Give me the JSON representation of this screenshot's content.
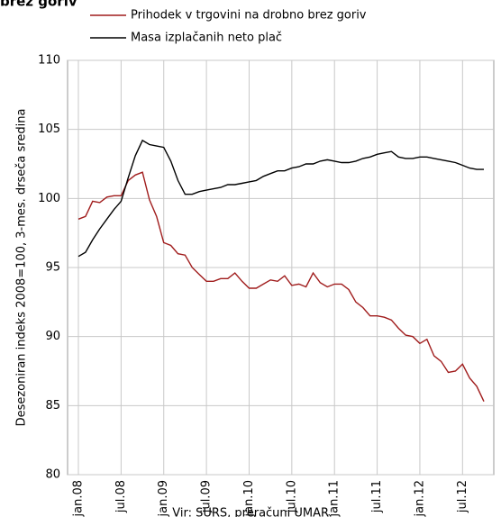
{
  "chart_data": {
    "type": "line",
    "title": "brez goriv",
    "y_label": "Desezoniran indeks 2008=100, 3-mes. drseča sredina",
    "source": "Vir: SURS, preračuni UMAR.",
    "categories": [
      "jan.08",
      null,
      null,
      null,
      null,
      null,
      "jul.08",
      null,
      null,
      null,
      null,
      null,
      "jan.09",
      null,
      null,
      null,
      null,
      null,
      "jul.09",
      null,
      null,
      null,
      null,
      null,
      "jan.10",
      null,
      null,
      null,
      null,
      null,
      "jul.10",
      null,
      null,
      null,
      null,
      null,
      "jan.11",
      null,
      null,
      null,
      null,
      null,
      "jul.11",
      null,
      null,
      null,
      null,
      null,
      "jan.12",
      null,
      null,
      null,
      null,
      null,
      "jul.12",
      null,
      null,
      null
    ],
    "series": [
      {
        "name": "Prihodek v trgovini na drobno brez goriv",
        "color": "#a01c1c",
        "values": [
          98.5,
          98.7,
          99.8,
          99.7,
          100.1,
          100.2,
          100.2,
          101.3,
          101.7,
          101.9,
          99.9,
          98.7,
          96.8,
          96.6,
          96.0,
          95.9,
          95.0,
          94.5,
          94.0,
          94.0,
          94.2,
          94.2,
          94.6,
          94.0,
          93.5,
          93.5,
          93.8,
          94.1,
          94.0,
          94.4,
          93.7,
          93.8,
          93.6,
          94.6,
          93.9,
          93.6,
          93.8,
          93.8,
          93.4,
          92.5,
          92.1,
          91.5,
          91.5,
          91.4,
          91.2,
          90.6,
          90.1,
          90.0,
          89.5,
          89.8,
          88.6,
          88.2,
          87.4,
          87.5,
          88.0,
          87.0,
          86.4,
          85.3
        ]
      },
      {
        "name": "Masa izplačanih neto plač",
        "color": "#000000",
        "values": [
          95.8,
          96.1,
          97.0,
          97.8,
          98.5,
          99.2,
          99.8,
          101.5,
          103.1,
          104.2,
          103.9,
          103.8,
          103.7,
          102.7,
          101.3,
          100.3,
          100.3,
          100.5,
          100.6,
          100.7,
          100.8,
          101.0,
          101.0,
          101.1,
          101.2,
          101.3,
          101.6,
          101.8,
          102.0,
          102.0,
          102.2,
          102.3,
          102.5,
          102.5,
          102.7,
          102.8,
          102.7,
          102.6,
          102.6,
          102.7,
          102.9,
          103.0,
          103.2,
          103.3,
          103.4,
          103.0,
          102.9,
          102.9,
          103.0,
          103.0,
          102.9,
          102.8,
          102.7,
          102.6,
          102.4,
          102.2,
          102.1,
          102.1
        ]
      }
    ],
    "ylim": [
      80,
      110
    ],
    "yticks": [
      80,
      85,
      90,
      95,
      100,
      105,
      110
    ],
    "grid": true
  }
}
